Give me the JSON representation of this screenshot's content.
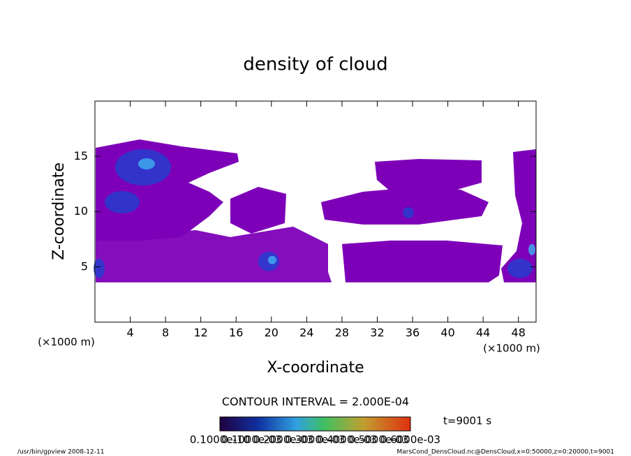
{
  "chart_data": {
    "type": "contour",
    "title": "density of cloud",
    "xlabel": "X-coordinate",
    "ylabel": "Z-coordinate",
    "x_unit": "(×1000 m)",
    "y_unit": "(×1000 m)",
    "xlim": [
      0,
      50
    ],
    "xticks": [
      4,
      8,
      12,
      16,
      20,
      24,
      28,
      32,
      36,
      40,
      44,
      48
    ],
    "ylim": [
      0,
      20
    ],
    "yticks": [
      5,
      10,
      15
    ],
    "contour_interval": "CONTOUR INTERVAL = 2.000E-04",
    "time": "t=9001 s",
    "colorbar_labels": [
      "0.1000e-10",
      "0.1000e-03",
      "0.2000e-03",
      "0.3000e-03",
      "0.4000e-03",
      "0.5000e-03",
      "0.6000e-03"
    ],
    "footer_left": "/usr/bin/gpview   2008-12-11",
    "footer_right": "MarsCond_DensCloud.nc@DensCloud,x=0:50000,z=0:20000,t=9001"
  }
}
